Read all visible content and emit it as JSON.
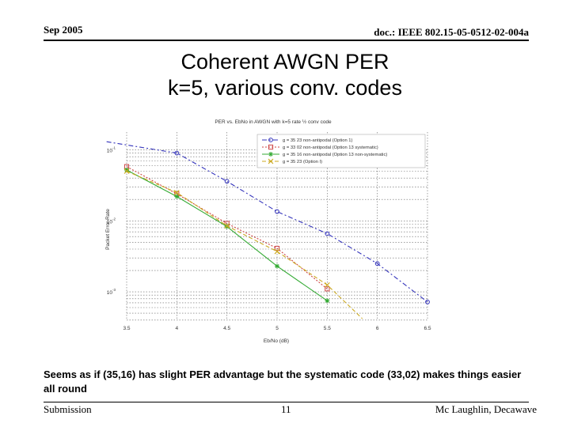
{
  "header": {
    "date": "Sep 2005",
    "doc_id": "doc.: IEEE 802.15-05-0512-02-004a"
  },
  "slide": {
    "title_line1": "Coherent AWGN PER",
    "title_line2": "k=5, various conv. codes"
  },
  "caption": "Seems as if (35,16) has slight PER advantage but the systematic code (33,02) makes things easier all round",
  "footer": {
    "left": "Submission",
    "page": "11",
    "author": "Mc Laughlin, Decawave"
  },
  "chart_data": {
    "type": "line",
    "title": "PER vs. EbNo in AWGN with k=5 rate ½ conv code",
    "xlabel": "Eb/No (dB)",
    "ylabel": "Packet Error Rate",
    "xlim": [
      3.5,
      6.5
    ],
    "ylim_log10": [
      -3.4,
      -0.75
    ],
    "yscale": "log",
    "x_ticks": [
      "3.5",
      "4",
      "4.5",
      "5",
      "5.5",
      "6",
      "6.5"
    ],
    "y_ticks": [
      {
        "base": "10",
        "exp": "-1",
        "value": 0.1
      },
      {
        "base": "10",
        "exp": "-2",
        "value": 0.01
      },
      {
        "base": "10",
        "exp": "-3",
        "value": 0.001
      }
    ],
    "grid": true,
    "legend_position": "top-right",
    "series": [
      {
        "name": "g = 35 23 non-antipodal (Option 1)",
        "color": "#3333bb",
        "dash": "6,3,2,3",
        "marker": "circle",
        "x": [
          3.3,
          4.0,
          4.5,
          5.0,
          5.5,
          6.0,
          6.5
        ],
        "y": [
          0.13,
          0.09,
          0.036,
          0.0135,
          0.0066,
          0.0025,
          0.00072
        ],
        "markers_from": 1
      },
      {
        "name": "g = 33 02 non-antipodal (Option 13 systematic)",
        "color": "#cc4444",
        "dash": "2,2",
        "marker": "square",
        "x": [
          3.5,
          4.0,
          4.5,
          5.0,
          5.5
        ],
        "y": [
          0.058,
          0.024,
          0.0092,
          0.0041,
          0.0011
        ],
        "markers_from": 0
      },
      {
        "name": "g = 35 16 non-antipodal (Option 13 non-systematic)",
        "color": "#33aa33",
        "dash": "",
        "marker": "star",
        "x": [
          3.5,
          4.0,
          4.5,
          5.0,
          5.5
        ],
        "y": [
          0.052,
          0.022,
          0.0083,
          0.0023,
          0.00075
        ],
        "markers_from": 0
      },
      {
        "name": "g = 35 23 (Option I)",
        "color": "#ccaa22",
        "dash": "5,3",
        "marker": "x",
        "x": [
          3.5,
          4.0,
          4.5,
          5.0,
          5.5,
          5.85
        ],
        "y": [
          0.05,
          0.025,
          0.0085,
          0.0037,
          0.00125,
          0.00042
        ],
        "markers_from": 0,
        "markers_count": 5
      }
    ]
  }
}
